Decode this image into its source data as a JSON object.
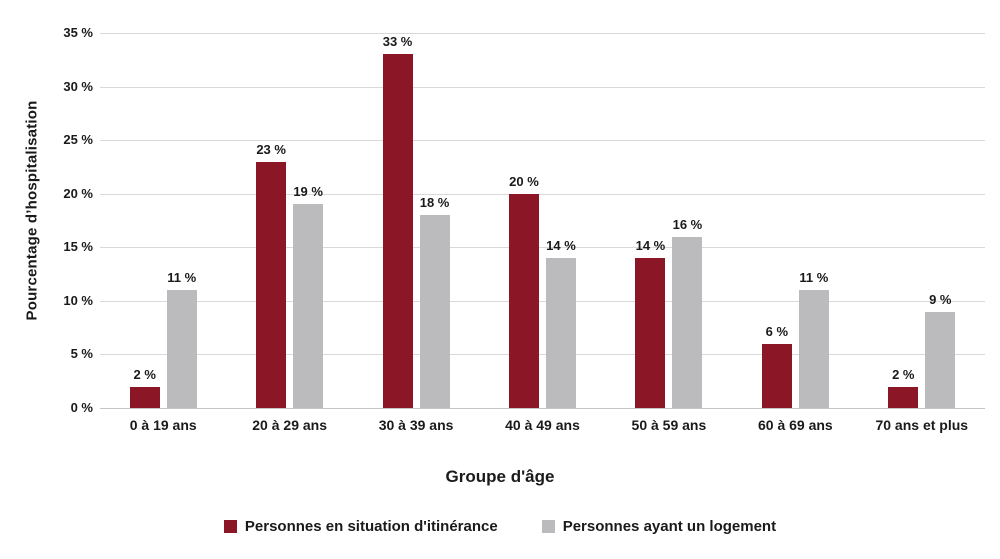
{
  "chart_data": {
    "type": "bar",
    "categories": [
      "0 à 19 ans",
      "20 à 29 ans",
      "30 à 39 ans",
      "40 à 49 ans",
      "50 à 59 ans",
      "60 à 69 ans",
      "70 ans et plus"
    ],
    "series": [
      {
        "name": "Personnes en situation d'itinérance",
        "color": "#8B1626",
        "values": [
          2,
          23,
          33,
          20,
          14,
          6,
          2
        ]
      },
      {
        "name": "Personnes ayant un logement",
        "color": "#BBBBBD",
        "values": [
          11,
          19,
          18,
          14,
          16,
          11,
          9
        ]
      }
    ],
    "title": "",
    "xlabel": "Groupe d'âge",
    "ylabel": "Pourcentage d’hospitalisation",
    "ylim": [
      0,
      35
    ],
    "ytick_step": 5,
    "ytick_labels": [
      "0 %",
      "5 %",
      "10 %",
      "15 %",
      "20 %",
      "25 %",
      "30 %",
      "35 %"
    ],
    "value_suffix": " %",
    "grid": "horizontal-only",
    "legend_position": "bottom-center"
  },
  "colors": {
    "background": "#FFFFFF",
    "gridline": "#D9D9D9",
    "axis_line": "#C4C4C4",
    "text": "#1A1A1A"
  }
}
